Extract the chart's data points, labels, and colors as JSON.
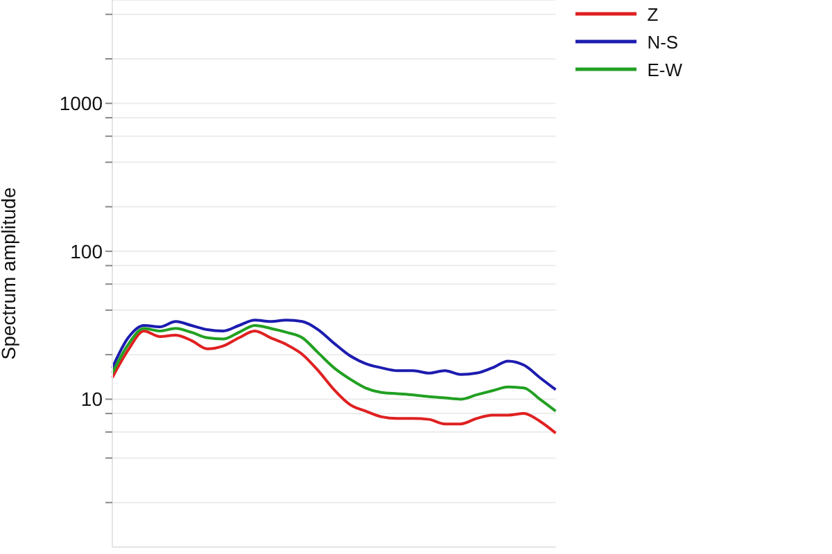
{
  "chart_data": {
    "type": "line",
    "ylabel": "Spectrum amplitude",
    "log": "y",
    "grid": "y",
    "legend": "top right",
    "categories": [
      null,
      null,
      null,
      null,
      null,
      null,
      null,
      null,
      null,
      null,
      null,
      null,
      null,
      null,
      null,
      null,
      null,
      null,
      null,
      null,
      null,
      null,
      null,
      null,
      null,
      null,
      null,
      null,
      null
    ],
    "tick_labels": "y",
    "ylim": [
      1,
      5000
    ],
    "yticks": [
      {
        "value": 2,
        "label": null
      },
      {
        "value": 4,
        "label": null
      },
      {
        "value": 6,
        "label": null
      },
      {
        "value": 8,
        "label": null
      },
      10,
      {
        "value": 20,
        "label": null
      },
      {
        "value": 40,
        "label": null
      },
      {
        "value": 60,
        "label": null
      },
      {
        "value": 80,
        "label": null
      },
      100,
      {
        "value": 200,
        "label": null
      },
      {
        "value": 400,
        "label": null
      },
      {
        "value": 600,
        "label": null
      },
      {
        "value": 800,
        "label": null
      },
      1000,
      {
        "value": 2000,
        "label": null
      },
      {
        "value": 4000,
        "label": null
      }
    ],
    "series": [
      {
        "name": "Z",
        "color": "#e02020",
        "values": [
          14.0,
          21.5,
          28.9,
          26.5,
          27.1,
          24.9,
          21.9,
          22.9,
          26.0,
          28.9,
          26.0,
          23.4,
          20.1,
          15.6,
          11.6,
          9.2,
          8.3,
          7.6,
          7.4,
          7.4,
          7.3,
          6.8,
          6.8,
          7.4,
          7.8,
          7.8,
          8.0,
          7.1,
          5.9
        ]
      },
      {
        "name": "N-S",
        "color": "#1c1cb0",
        "values": [
          16.3,
          26.0,
          31.5,
          30.8,
          33.5,
          31.5,
          29.5,
          28.9,
          31.5,
          34.2,
          33.5,
          34.2,
          33.5,
          29.5,
          23.9,
          19.7,
          17.4,
          16.3,
          15.6,
          15.6,
          15.0,
          15.6,
          14.7,
          15.0,
          16.3,
          18.1,
          17.0,
          14.0,
          11.6
        ]
      },
      {
        "name": "E-W",
        "color": "#22a022",
        "values": [
          15.0,
          23.4,
          30.1,
          28.9,
          30.1,
          28.3,
          26.0,
          25.5,
          28.3,
          31.5,
          30.1,
          28.3,
          26.0,
          20.6,
          16.3,
          13.7,
          11.9,
          11.1,
          10.9,
          10.7,
          10.4,
          10.2,
          10.0,
          10.7,
          11.4,
          12.1,
          11.9,
          10.0,
          8.3
        ]
      }
    ]
  }
}
